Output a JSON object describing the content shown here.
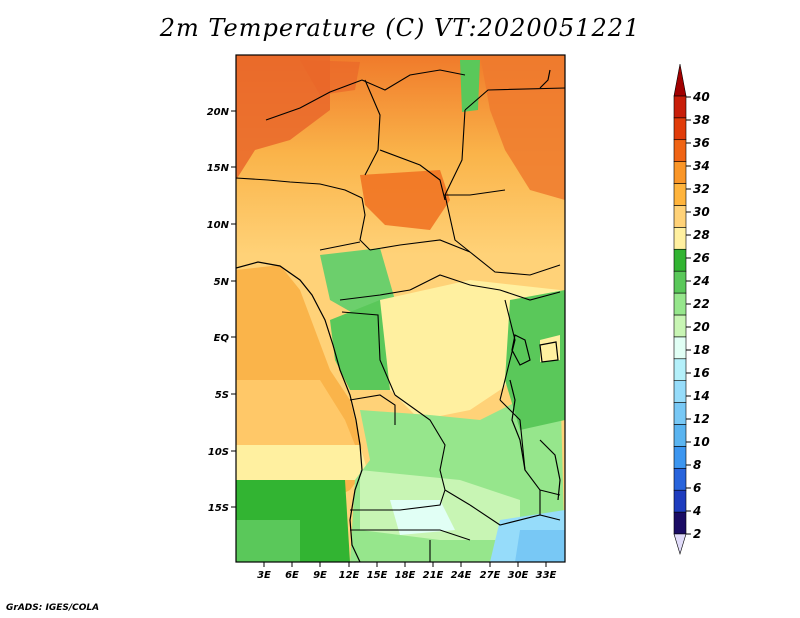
{
  "title": "2m Temperature (C) VT:2020051221",
  "credit": "GrADS: IGES/COLA",
  "map": {
    "lat_labels": [
      "20N",
      "15N",
      "10N",
      "5N",
      "EQ",
      "5S",
      "10S",
      "15S"
    ],
    "lon_labels": [
      "3E",
      "6E",
      "9E",
      "12E",
      "15E",
      "18E",
      "21E",
      "24E",
      "27E",
      "30E",
      "33E"
    ]
  },
  "colorbar": {
    "levels": [
      "2",
      "4",
      "6",
      "8",
      "10",
      "12",
      "14",
      "16",
      "18",
      "20",
      "22",
      "24",
      "26",
      "28",
      "30",
      "32",
      "34",
      "36",
      "38",
      "40"
    ],
    "colors": [
      "#1a0c64",
      "#1e3cbe",
      "#2864dc",
      "#3c96f0",
      "#5ab4f0",
      "#78c8f5",
      "#96dcfa",
      "#b4f0fa",
      "#e1fff5",
      "#c8f5b4",
      "#96e68c",
      "#5ac85a",
      "#32b432",
      "#fff0a0",
      "#ffd278",
      "#ffb43c",
      "#fa9628",
      "#f06414",
      "#e13c0a",
      "#c81e0a",
      "#a00000"
    ],
    "under_color": "#e1dcfa"
  }
}
